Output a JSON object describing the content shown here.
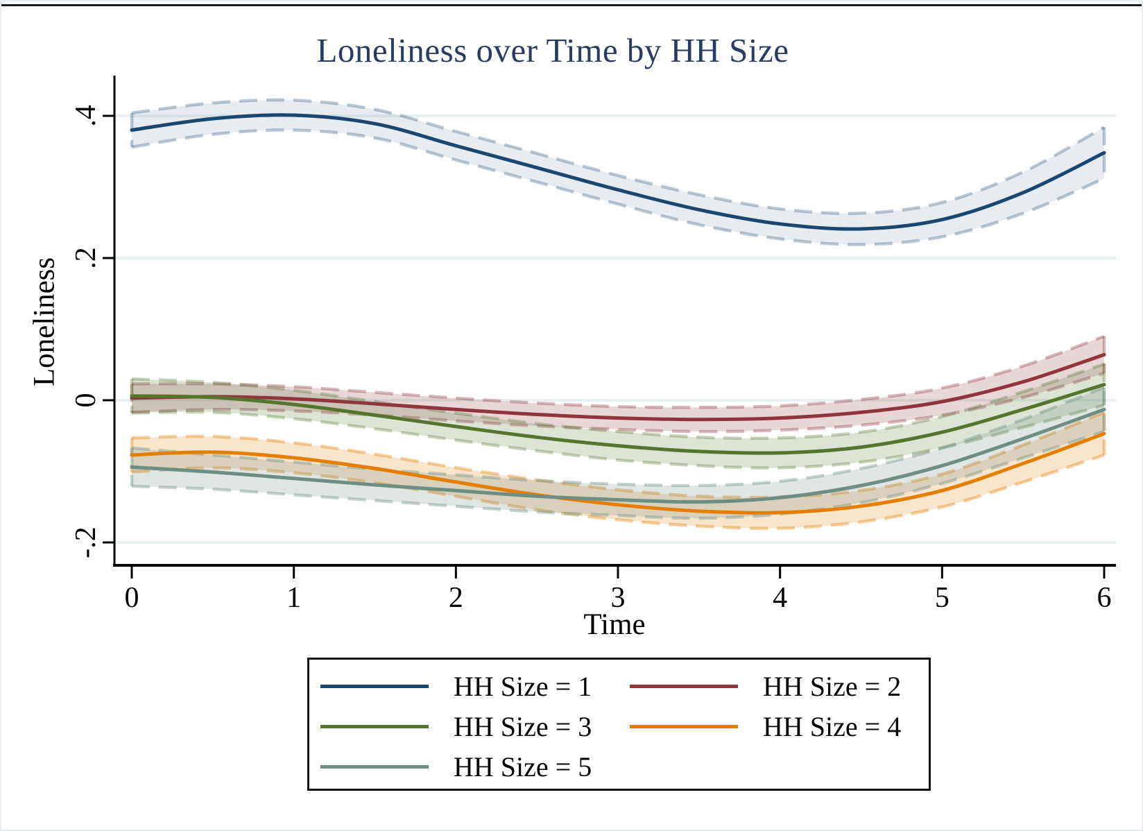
{
  "chart_data": {
    "type": "line",
    "title": "Loneliness over Time by HH Size",
    "xlabel": "Time",
    "ylabel": "Loneliness",
    "grid": true,
    "legend_position": "bottom",
    "xlim": [
      0,
      6
    ],
    "x_ticks": [
      {
        "value": 0,
        "label": "0"
      },
      {
        "value": 1,
        "label": "1"
      },
      {
        "value": 2,
        "label": "2"
      },
      {
        "value": 3,
        "label": "3"
      },
      {
        "value": 4,
        "label": "4"
      },
      {
        "value": 5,
        "label": "5"
      },
      {
        "value": 6,
        "label": "6"
      }
    ],
    "y_ticks": [
      {
        "value": 0.4,
        "label": ".4"
      },
      {
        "value": 0.2,
        "label": ".2"
      },
      {
        "value": 0,
        "label": "0"
      },
      {
        "value": -0.2,
        "label": "-.2"
      }
    ],
    "x": [
      0,
      0.5,
      1,
      1.5,
      2,
      2.5,
      3,
      3.5,
      4,
      4.5,
      5,
      5.5,
      6
    ],
    "series": [
      {
        "name": "HH Size = 1",
        "color": "#1a476f",
        "band_fill": "rgba(26,71,111,0.10)",
        "band_edge": "rgba(26,71,111,0.30)",
        "values": [
          0.38,
          0.396,
          0.401,
          0.389,
          0.358,
          0.327,
          0.296,
          0.268,
          0.248,
          0.241,
          0.254,
          0.292,
          0.348
        ],
        "ci_halfwidth": [
          0.024,
          0.022,
          0.021,
          0.02,
          0.02,
          0.02,
          0.02,
          0.021,
          0.021,
          0.022,
          0.024,
          0.029,
          0.036
        ]
      },
      {
        "name": "HH Size = 2",
        "color": "#90353b",
        "band_fill": "rgba(144,53,59,0.20)",
        "band_edge": "rgba(144,53,59,0.35)",
        "values": [
          0.003,
          0.005,
          0.002,
          -0.005,
          -0.013,
          -0.02,
          -0.025,
          -0.027,
          -0.025,
          -0.017,
          -0.002,
          0.026,
          0.064
        ],
        "ci_halfwidth": [
          0.02,
          0.018,
          0.017,
          0.016,
          0.016,
          0.016,
          0.016,
          0.017,
          0.017,
          0.018,
          0.019,
          0.022,
          0.026
        ]
      },
      {
        "name": "HH Size = 3",
        "color": "#55752f",
        "band_fill": "rgba(85,117,47,0.20)",
        "band_edge": "rgba(85,117,47,0.33)",
        "values": [
          0.006,
          0.004,
          -0.006,
          -0.021,
          -0.037,
          -0.052,
          -0.064,
          -0.072,
          -0.074,
          -0.066,
          -0.045,
          -0.013,
          0.022
        ],
        "ci_halfwidth": [
          0.024,
          0.021,
          0.02,
          0.019,
          0.019,
          0.019,
          0.02,
          0.02,
          0.021,
          0.021,
          0.022,
          0.025,
          0.029
        ]
      },
      {
        "name": "HH Size = 4",
        "color": "#e37e00",
        "band_fill": "rgba(227,126,0,0.20)",
        "band_edge": "rgba(227,126,0,0.38)",
        "values": [
          -0.077,
          -0.073,
          -0.081,
          -0.096,
          -0.115,
          -0.133,
          -0.147,
          -0.156,
          -0.158,
          -0.149,
          -0.127,
          -0.089,
          -0.047
        ],
        "ci_halfwidth": [
          0.024,
          0.022,
          0.021,
          0.02,
          0.02,
          0.021,
          0.021,
          0.021,
          0.022,
          0.022,
          0.023,
          0.026,
          0.03
        ]
      },
      {
        "name": "HH Size = 5",
        "color": "#6e8e84",
        "band_fill": "rgba(110,142,132,0.22)",
        "band_edge": "rgba(110,142,132,0.40)",
        "values": [
          -0.094,
          -0.101,
          -0.11,
          -0.119,
          -0.127,
          -0.135,
          -0.14,
          -0.143,
          -0.137,
          -0.12,
          -0.092,
          -0.054,
          -0.013
        ],
        "ci_halfwidth": [
          0.027,
          0.024,
          0.023,
          0.022,
          0.022,
          0.022,
          0.022,
          0.023,
          0.023,
          0.024,
          0.025,
          0.027,
          0.031
        ]
      }
    ],
    "legend": {
      "items": [
        "HH Size = 1",
        "HH Size = 2",
        "HH Size = 3",
        "HH Size = 4",
        "HH Size = 5"
      ]
    },
    "style": {
      "gridline_color": "#e9f0f2",
      "axis_color": "#000000",
      "title_color": "#2a3b63"
    }
  }
}
